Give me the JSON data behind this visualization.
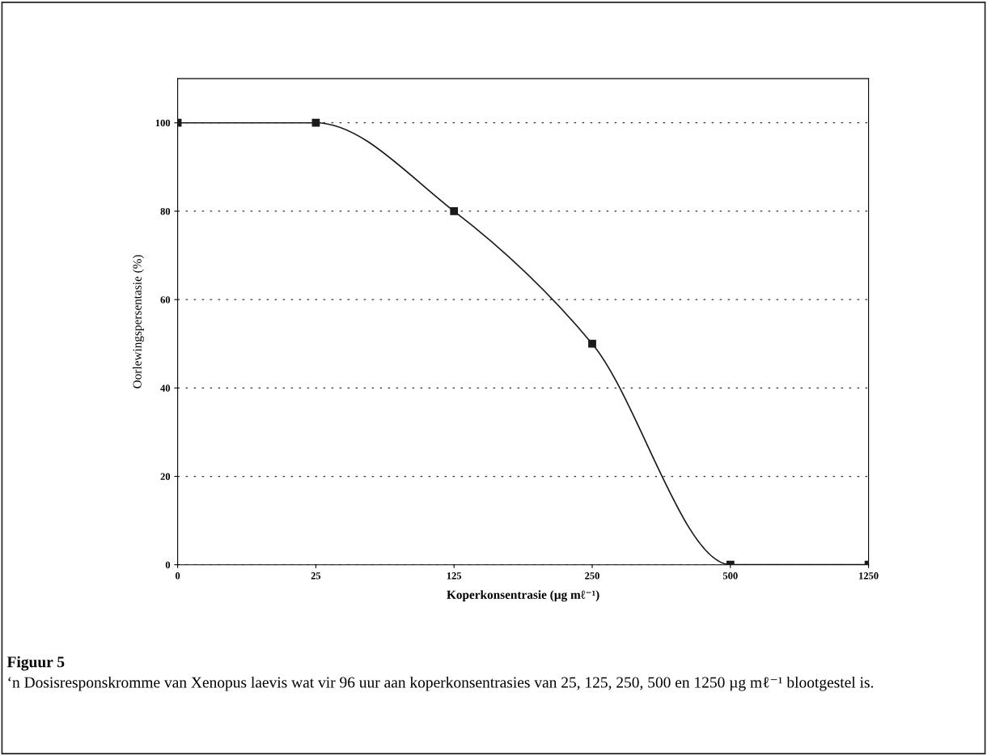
{
  "chart_data": {
    "type": "line",
    "xlabel": "Koperkonsentrasie (µg mℓ⁻¹)",
    "ylabel": "Oorlewingspersentasie (%)",
    "categories": [
      "0",
      "25",
      "125",
      "250",
      "500",
      "1250"
    ],
    "series": [
      {
        "color": "#1a1a1a",
        "values": [
          100,
          100,
          80,
          50,
          0,
          0
        ]
      }
    ],
    "ylim": [
      0,
      110
    ],
    "yticks": [
      0,
      20,
      40,
      60,
      80,
      100
    ],
    "grid": "y",
    "marker": "square",
    "line_style": "solid",
    "legend": false,
    "annotations": [
      "Figuur 5",
      "‘n Dosisresponskromme van Xenopus laevis wat vir 96 uur aan koperkonsentrasies van 25, 125, 250, 500 en 1250 µg mℓ⁻¹ blootgestel is."
    ]
  }
}
